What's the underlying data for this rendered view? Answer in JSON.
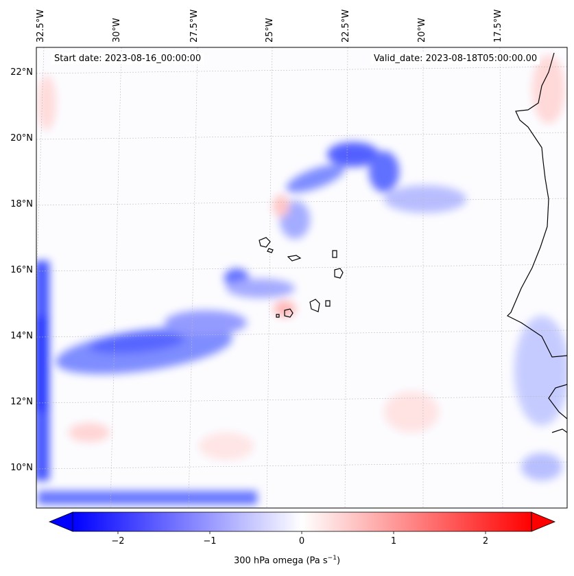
{
  "map": {
    "info_left": "Start date: 2023-08-16_00:00:00",
    "info_right": "Valid_date: 2023-08-18T05:00:00.00",
    "lon_labels": [
      "32.5°W",
      "30°W",
      "27.5°W",
      "25°W",
      "22.5°W",
      "20°W",
      "17.5°W"
    ],
    "lat_labels": [
      "22°N",
      "20°N",
      "18°N",
      "16°N",
      "14°N",
      "12°N",
      "10°N"
    ]
  },
  "colorbar": {
    "ticks": [
      "−2",
      "−1",
      "0",
      "1",
      "2"
    ],
    "label_prefix": "300 hPa omega (Pa s",
    "label_sup": "−1",
    "label_suffix": ")",
    "colors": {
      "neg": "#0000ff",
      "mid": "#ffffff",
      "pos": "#ff0000"
    }
  }
}
